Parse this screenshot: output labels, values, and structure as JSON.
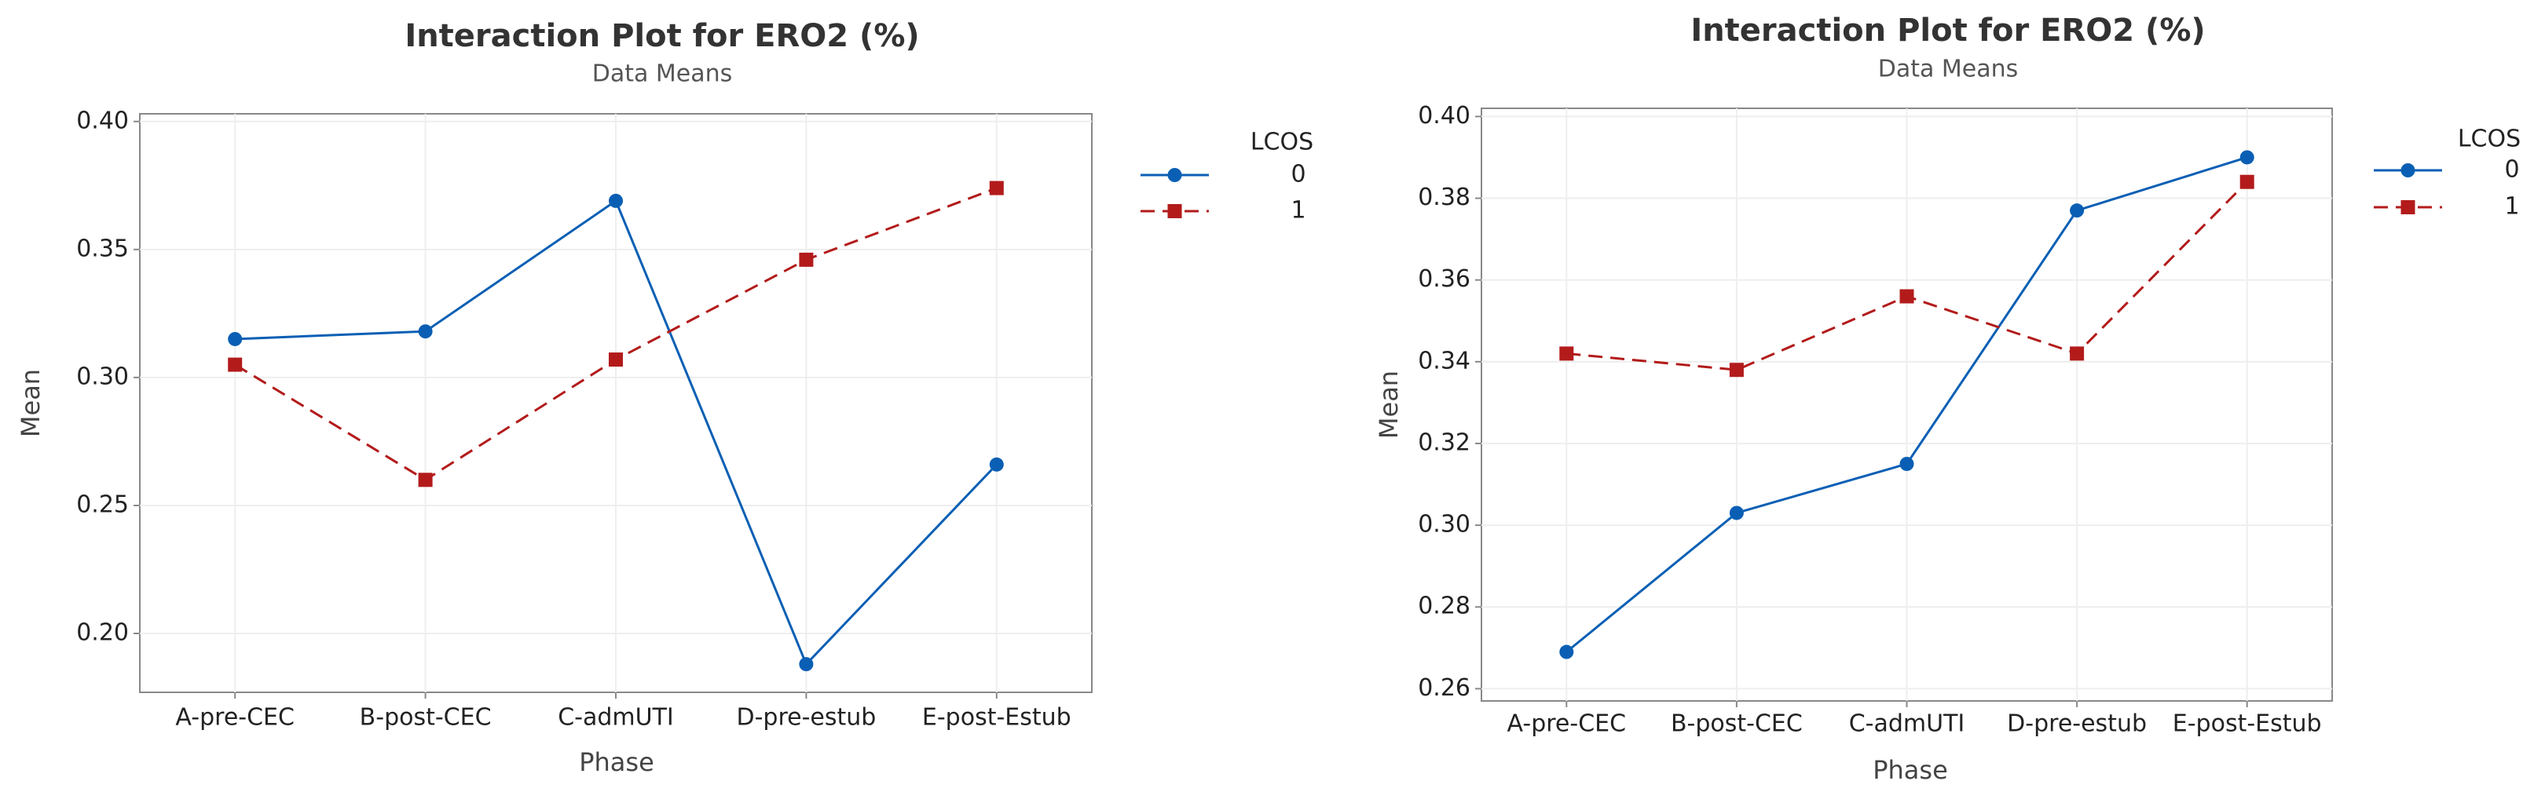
{
  "chart_data": [
    {
      "type": "line",
      "title": "Interaction Plot for ERO2 (%)",
      "subtitle": "Data Means",
      "x_label": "Phase",
      "y_label": "Mean",
      "legend_title": "LCOS",
      "categories": [
        "A-pre-CEC",
        "B-post-CEC",
        "C-admUTI",
        "D-pre-estub",
        "E-post-Estub"
      ],
      "series": [
        {
          "name": "0",
          "color": "#0a5fb4",
          "marker": "circle",
          "line_style": "solid",
          "values": [
            0.315,
            0.318,
            0.369,
            0.188,
            0.266
          ]
        },
        {
          "name": "1",
          "color": "#b31b1b",
          "marker": "square",
          "line_style": "dashed",
          "values": [
            0.305,
            0.26,
            0.307,
            0.346,
            0.374
          ]
        }
      ],
      "ylim": [
        0.177,
        0.403
      ],
      "yticks": [
        {
          "value": 0.2,
          "label": "0.20"
        },
        {
          "value": 0.25,
          "label": "0.25"
        },
        {
          "value": 0.3,
          "label": "0.30"
        },
        {
          "value": 0.35,
          "label": "0.35"
        },
        {
          "value": 0.4,
          "label": "0.40"
        }
      ],
      "grid": true
    },
    {
      "type": "line",
      "title": "Interaction Plot for ERO2 (%)",
      "subtitle": "Data Means",
      "x_label": "Phase",
      "y_label": "Mean",
      "legend_title": "LCOS",
      "categories": [
        "A-pre-CEC",
        "B-post-CEC",
        "C-admUTI",
        "D-pre-estub",
        "E-post-Estub"
      ],
      "series": [
        {
          "name": "0",
          "color": "#0a5fb4",
          "marker": "circle",
          "line_style": "solid",
          "values": [
            0.269,
            0.303,
            0.315,
            0.377,
            0.39
          ]
        },
        {
          "name": "1",
          "color": "#b31b1b",
          "marker": "square",
          "line_style": "dashed",
          "values": [
            0.342,
            0.338,
            0.356,
            0.342,
            0.384
          ]
        }
      ],
      "ylim": [
        0.257,
        0.402
      ],
      "yticks": [
        {
          "value": 0.26,
          "label": "0.26"
        },
        {
          "value": 0.28,
          "label": "0.28"
        },
        {
          "value": 0.3,
          "label": "0.30"
        },
        {
          "value": 0.32,
          "label": "0.32"
        },
        {
          "value": 0.34,
          "label": "0.34"
        },
        {
          "value": 0.36,
          "label": "0.36"
        },
        {
          "value": 0.38,
          "label": "0.38"
        },
        {
          "value": 0.4,
          "label": "0.40"
        }
      ],
      "grid": true
    }
  ]
}
